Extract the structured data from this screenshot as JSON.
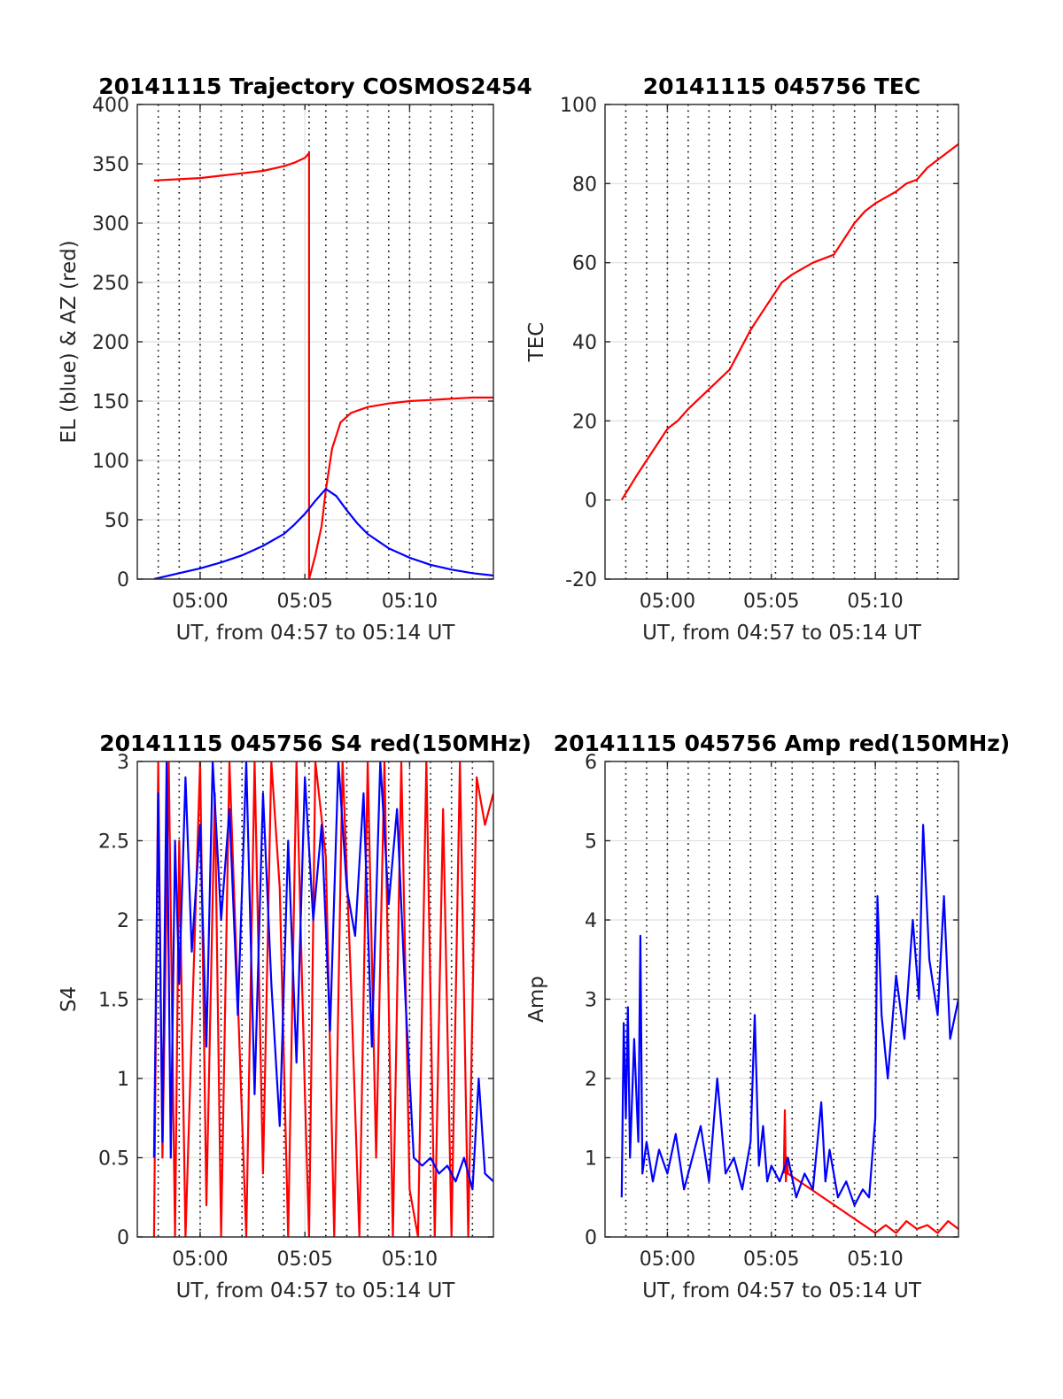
{
  "chart_data": [
    {
      "type": "line",
      "title": "20141115 Trajectory COSMOS2454",
      "xlabel": "UT, from 04:57 to 05:14 UT",
      "ylabel": "EL (blue) & AZ (red)",
      "xlim_minutes_after_0457": [
        0,
        17
      ],
      "ylim": [
        0,
        400
      ],
      "x_ticks": [
        {
          "minute": 3,
          "label": "05:00"
        },
        {
          "minute": 8,
          "label": "05:05"
        },
        {
          "minute": 13,
          "label": "05:10"
        }
      ],
      "y_ticks": [
        "0",
        "50",
        "100",
        "150",
        "200",
        "250",
        "300",
        "350",
        "400"
      ],
      "grid": true,
      "dotted_lines_minutes": [
        1.0,
        2.0,
        3.0,
        4.0,
        5.0,
        6.0,
        7.0,
        8.2,
        9.0,
        10.0,
        11.0,
        12.0,
        13.0,
        14.0,
        15.0,
        16.0
      ],
      "series": [
        {
          "color": "#ff0000",
          "x": [
            0.8,
            2,
            3,
            4,
            5,
            6,
            7,
            7.5,
            8,
            8.2,
            8.2,
            8.5,
            8.8,
            9.0,
            9.3,
            9.7,
            10.2,
            11,
            12,
            13,
            14,
            15,
            16,
            17
          ],
          "values": [
            336,
            337,
            338,
            340,
            342,
            344,
            348,
            351,
            355,
            359,
            0,
            20,
            45,
            75,
            110,
            132,
            140,
            145,
            148,
            150,
            151,
            152,
            153,
            153
          ]
        },
        {
          "color": "#0000ff",
          "x": [
            0.8,
            2,
            3,
            4,
            5,
            6,
            7,
            7.5,
            8,
            8.5,
            9,
            9.5,
            10,
            10.5,
            11,
            12,
            13,
            14,
            15,
            16,
            17
          ],
          "values": [
            0,
            5,
            9,
            14,
            20,
            28,
            38,
            46,
            55,
            66,
            76,
            70,
            58,
            47,
            38,
            26,
            18,
            12,
            8,
            5,
            3
          ]
        }
      ]
    },
    {
      "type": "line",
      "title": "20141115 045756 TEC",
      "xlabel": "UT, from 04:57 to 05:14 UT",
      "ylabel": "TEC",
      "xlim_minutes_after_0457": [
        0,
        17
      ],
      "ylim": [
        -20,
        100
      ],
      "x_ticks": [
        {
          "minute": 3,
          "label": "05:00"
        },
        {
          "minute": 8,
          "label": "05:05"
        },
        {
          "minute": 13,
          "label": "05:10"
        }
      ],
      "y_ticks": [
        "-20",
        "0",
        "20",
        "40",
        "60",
        "80",
        "100"
      ],
      "grid": true,
      "dotted_lines_minutes": [
        1.0,
        2.0,
        3.0,
        4.0,
        5.0,
        6.0,
        7.0,
        8.2,
        9.0,
        10.0,
        11.0,
        12.0,
        13.0,
        14.0,
        15.0,
        16.0
      ],
      "series": [
        {
          "color": "#ff0000",
          "x": [
            0.8,
            1.5,
            2,
            2.5,
            3,
            3.5,
            4,
            5,
            6,
            6.5,
            7,
            7.5,
            8,
            8.5,
            9,
            10,
            11,
            11.5,
            12,
            12.5,
            13,
            14,
            14.5,
            15,
            15.5,
            16,
            17
          ],
          "values": [
            0,
            6,
            10,
            14,
            18,
            20,
            23,
            28,
            33,
            38,
            43,
            47,
            51,
            55,
            57,
            60,
            62,
            66,
            70,
            73,
            75,
            78,
            80,
            81,
            84,
            86,
            90
          ]
        }
      ]
    },
    {
      "type": "line",
      "title": "20141115 045756 S4 red(150MHz)",
      "xlabel": "UT, from 04:57 to 05:14 UT",
      "ylabel": "S4",
      "xlim_minutes_after_0457": [
        0,
        17
      ],
      "ylim": [
        0,
        3
      ],
      "x_ticks": [
        {
          "minute": 3,
          "label": "05:00"
        },
        {
          "minute": 8,
          "label": "05:05"
        },
        {
          "minute": 13,
          "label": "05:10"
        }
      ],
      "y_ticks": [
        "0",
        "0.5",
        "1",
        "1.5",
        "2",
        "2.5",
        "3"
      ],
      "grid": true,
      "dotted_lines_minutes": [
        1.0,
        2.0,
        3.0,
        4.0,
        5.0,
        6.0,
        7.0,
        8.2,
        9.0,
        10.0,
        11.0,
        12.0,
        13.0,
        14.0,
        15.0,
        16.0
      ],
      "series": [
        {
          "color": "#ff0000",
          "x": [
            0.8,
            1.0,
            1.2,
            1.5,
            1.8,
            2.0,
            2.3,
            2.6,
            3.0,
            3.3,
            3.7,
            4.0,
            4.4,
            4.8,
            5.2,
            5.6,
            6.0,
            6.4,
            6.8,
            7.2,
            7.6,
            8.0,
            8.2,
            8.5,
            9.0,
            9.4,
            9.8,
            10.2,
            10.6,
            11.0,
            11.4,
            11.8,
            12.2,
            12.6,
            13.0,
            13.4,
            13.8,
            14.2,
            14.6,
            15.0,
            15.4,
            15.8,
            16.2,
            16.6,
            17.0
          ],
          "values": [
            0,
            3,
            0.5,
            3,
            0,
            2.5,
            0,
            1.3,
            3,
            0.2,
            2.8,
            0,
            3,
            1.5,
            0,
            3,
            0.4,
            3,
            2.2,
            0,
            3,
            0.9,
            0,
            3,
            2.4,
            0,
            3,
            1.6,
            0,
            3,
            0.5,
            3,
            0,
            3,
            0.3,
            0,
            3,
            0,
            2.7,
            0,
            3,
            0,
            2.9,
            2.6,
            2.8
          ]
        },
        {
          "color": "#0000ff",
          "x": [
            0.8,
            1.0,
            1.2,
            1.4,
            1.6,
            1.8,
            2.0,
            2.3,
            2.6,
            3.0,
            3.3,
            3.6,
            4.0,
            4.4,
            4.8,
            5.2,
            5.6,
            6.0,
            6.4,
            6.8,
            7.2,
            7.6,
            8.0,
            8.4,
            8.8,
            9.2,
            9.6,
            10.0,
            10.4,
            10.8,
            11.2,
            11.6,
            12.0,
            12.4,
            12.8,
            13.2,
            13.6,
            14.0,
            14.4,
            14.8,
            15.2,
            15.6,
            16.0,
            16.3,
            16.6,
            17.0
          ],
          "values": [
            0.5,
            2.8,
            0.6,
            3,
            0.5,
            2.5,
            1.6,
            2.9,
            1.8,
            2.6,
            1.2,
            3,
            2.0,
            2.7,
            1.4,
            3,
            0.9,
            2.8,
            1.6,
            0.7,
            2.5,
            1.1,
            2.9,
            2.0,
            2.6,
            1.3,
            3,
            2.2,
            1.9,
            2.8,
            1.2,
            3,
            2.1,
            2.7,
            1.5,
            0.5,
            0.45,
            0.5,
            0.4,
            0.45,
            0.35,
            0.5,
            0.3,
            1.0,
            0.4,
            0.35
          ]
        }
      ]
    },
    {
      "type": "line",
      "title": "20141115 045756 Amp red(150MHz)",
      "xlabel": "UT, from 04:57 to 05:14 UT",
      "ylabel": "Amp",
      "xlim_minutes_after_0457": [
        0,
        17
      ],
      "ylim": [
        0,
        6
      ],
      "x_ticks": [
        {
          "minute": 3,
          "label": "05:00"
        },
        {
          "minute": 8,
          "label": "05:05"
        },
        {
          "minute": 13,
          "label": "05:10"
        }
      ],
      "y_ticks": [
        "0",
        "1",
        "2",
        "3",
        "4",
        "5",
        "6"
      ],
      "grid": true,
      "dotted_lines_minutes": [
        1.0,
        2.0,
        3.0,
        4.0,
        5.0,
        6.0,
        7.0,
        8.2,
        9.0,
        10.0,
        11.0,
        12.0,
        13.0,
        14.0,
        15.0,
        16.0
      ],
      "series": [
        {
          "color": "#ff0000",
          "x": [
            8.6,
            8.65,
            8.7,
            8.75,
            8.8,
            13.0,
            13.5,
            14.0,
            14.5,
            15.0,
            15.5,
            16.0,
            16.5,
            17.0
          ],
          "values": [
            0.8,
            1.6,
            0.7,
            1.0,
            0.8,
            0.05,
            0.15,
            0.05,
            0.2,
            0.1,
            0.15,
            0.05,
            0.2,
            0.1
          ]
        },
        {
          "color": "#0000ff",
          "x": [
            0.8,
            0.9,
            1.0,
            1.1,
            1.2,
            1.4,
            1.6,
            1.7,
            1.8,
            2.0,
            2.3,
            2.6,
            3.0,
            3.4,
            3.8,
            4.2,
            4.6,
            5.0,
            5.4,
            5.8,
            6.2,
            6.6,
            7.0,
            7.2,
            7.4,
            7.6,
            7.8,
            8.0,
            8.4,
            8.8,
            9.2,
            9.6,
            10.0,
            10.4,
            10.6,
            10.8,
            11.2,
            11.6,
            12.0,
            12.4,
            12.7,
            13.0,
            13.1,
            13.3,
            13.6,
            14.0,
            14.4,
            14.8,
            15.1,
            15.3,
            15.6,
            16.0,
            16.3,
            16.6,
            17.0
          ],
          "values": [
            0.5,
            2.7,
            1.5,
            2.9,
            1.0,
            2.5,
            1.2,
            3.8,
            0.8,
            1.2,
            0.7,
            1.1,
            0.8,
            1.3,
            0.6,
            1.0,
            1.4,
            0.7,
            2.0,
            0.8,
            1.0,
            0.6,
            1.2,
            2.8,
            0.9,
            1.4,
            0.7,
            0.9,
            0.7,
            1.0,
            0.5,
            0.8,
            0.6,
            1.7,
            0.7,
            1.1,
            0.5,
            0.7,
            0.4,
            0.6,
            0.5,
            1.5,
            4.3,
            2.8,
            2.0,
            3.3,
            2.5,
            4.0,
            3.0,
            5.2,
            3.5,
            2.8,
            4.3,
            2.5,
            3.0
          ]
        }
      ]
    }
  ]
}
